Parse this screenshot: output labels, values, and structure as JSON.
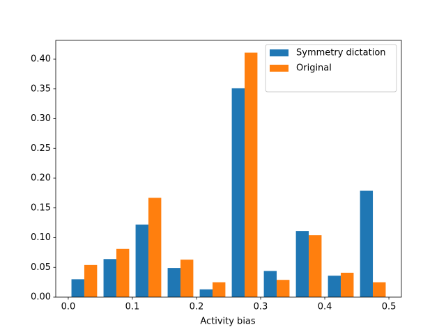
{
  "chart_data": {
    "type": "histogram",
    "xlabel": "Activity bias",
    "bins": [
      0,
      0.05,
      0.1,
      0.15,
      0.2,
      0.25,
      0.3,
      0.35,
      0.4,
      0.45,
      0.5
    ],
    "series": [
      {
        "name": "Symmetry dictation",
        "color": "#1f77b4",
        "values": [
          0.03,
          0.064,
          0.122,
          0.049,
          0.013,
          0.351,
          0.044,
          0.111,
          0.036,
          0.179
        ]
      },
      {
        "name": "Original",
        "color": "#ff7f0e",
        "values": [
          0.054,
          0.081,
          0.167,
          0.063,
          0.025,
          0.411,
          0.029,
          0.104,
          0.041,
          0.025
        ]
      }
    ],
    "xlim": [
      -0.0195,
      0.5195
    ],
    "xticks": [
      {
        "value": 0,
        "label": "0.0"
      },
      0.1,
      0.2,
      0.3,
      0.4,
      0.5
    ],
    "ylim": [
      0,
      0.4316
    ],
    "yticks": [
      {
        "value": 0,
        "label": "0.00"
      },
      0.05,
      {
        "value": 0.1,
        "label": "0.10"
      },
      0.15,
      {
        "value": 0.2,
        "label": "0.20"
      },
      0.25,
      {
        "value": 0.3,
        "label": "0.30"
      },
      0.35,
      {
        "value": 0.4,
        "label": "0.40"
      }
    ],
    "legend": "upper right",
    "grid": false
  }
}
